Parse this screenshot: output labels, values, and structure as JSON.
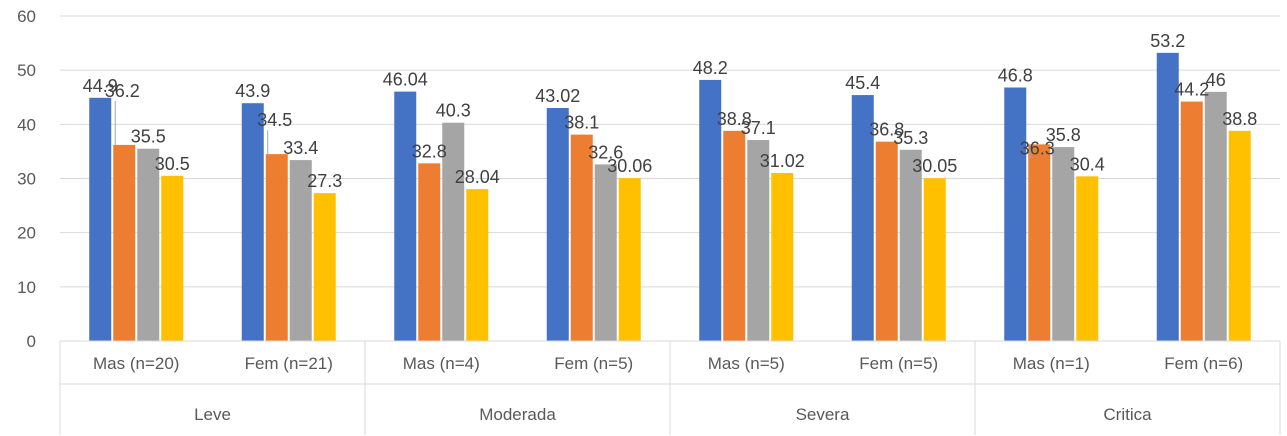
{
  "chart_data": {
    "type": "bar",
    "ylim": [
      0,
      60
    ],
    "yticks": [
      0,
      10,
      20,
      30,
      40,
      50,
      60
    ],
    "grid": true,
    "legend": "none",
    "groups": [
      {
        "label": "Leve",
        "categories": [
          "Mas (n=20)",
          "Fem (n=21)"
        ]
      },
      {
        "label": "Moderada",
        "categories": [
          "Mas (n=4)",
          "Fem (n=5)"
        ]
      },
      {
        "label": "Severa",
        "categories": [
          "Mas (n=5)",
          "Fem (n=5)"
        ]
      },
      {
        "label": "Critica",
        "categories": [
          "Mas (n=1)",
          "Fem (n=6)"
        ]
      }
    ],
    "categories": [
      "Mas (n=20)",
      "Fem (n=21)",
      "Mas (n=4)",
      "Fem (n=5)",
      "Mas (n=5)",
      "Fem (n=5)",
      "Mas (n=1)",
      "Fem (n=6)"
    ],
    "series": [
      {
        "color": "#4472C4",
        "values": [
          44.9,
          43.9,
          46.04,
          43.02,
          48.2,
          45.4,
          46.8,
          53.2
        ],
        "labels": [
          "44.9",
          "43.9",
          "46.04",
          "43.02",
          "48.2",
          "45.4",
          "46.8",
          "53.2"
        ]
      },
      {
        "color": "#ED7D31",
        "values": [
          36.2,
          34.5,
          32.8,
          38.1,
          38.8,
          36.8,
          36.3,
          44.2
        ],
        "labels": [
          "36.2",
          "34.5",
          "32.8",
          "38.1",
          "38.8",
          "36.8",
          "36.3",
          "44.2"
        ]
      },
      {
        "color": "#A5A5A5",
        "values": [
          35.5,
          33.4,
          40.3,
          32.6,
          37.1,
          35.3,
          35.8,
          46
        ],
        "labels": [
          "35.5",
          "33.4",
          "40.3",
          "32.6",
          "37.1",
          "35.3",
          "35.8",
          "46"
        ]
      },
      {
        "color": "#FFC000",
        "values": [
          30.5,
          27.3,
          28.04,
          30.06,
          31.02,
          30.05,
          30.4,
          38.8
        ],
        "labels": [
          "30.5",
          "27.3",
          "28.04",
          "30.06",
          "31.02",
          "30.05",
          "30.4",
          "38.8"
        ]
      }
    ]
  }
}
